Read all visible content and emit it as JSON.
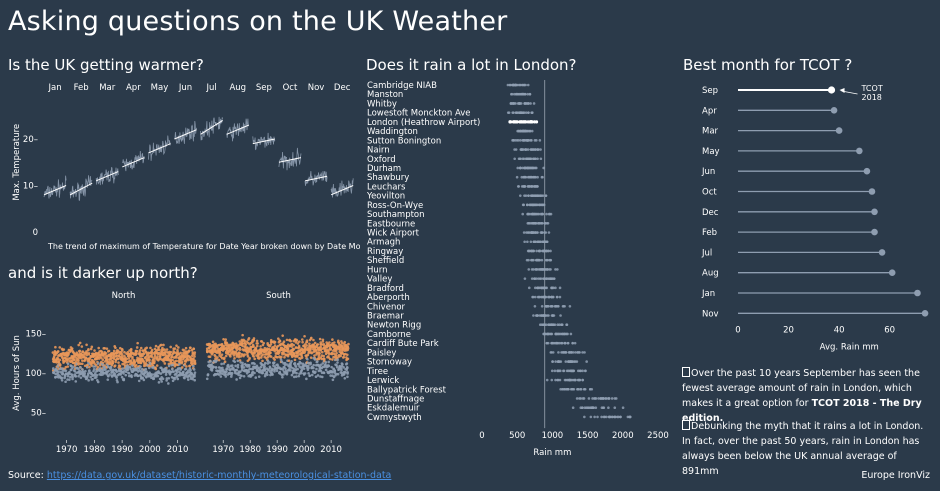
{
  "header": {
    "title": "Asking questions on the UK Weather"
  },
  "warmer": {
    "title": "Is the UK getting warmer?",
    "caption": "The trend of maximum of  Temperature for Date Year broken down by Date Month."
  },
  "darker": {
    "title": "and is it darker up north?",
    "panel_north": "North",
    "panel_south": "South"
  },
  "rain": {
    "title": "Does it rain a lot in London?"
  },
  "tcot": {
    "title": "Best month for TCOT ?",
    "annotation_line1": "TCOT",
    "annotation_line2": "2018"
  },
  "notes": {
    "note1_text": "Over the past 10 years September has seen the fewest average amount of rain in London, which makes it a great option for ",
    "note1_bold": "TCOT 2018 - The Dry edition.",
    "note2_text": "Debunking the myth that it rains a lot in London. In fact, over the past 50 years, rain in London has always been below the UK annual average of 891mm"
  },
  "footer": {
    "source_label": "Source: ",
    "source_link": "https://data.gov.uk/dataset/historic-monthly-meteorological-station-data",
    "credit": "Europe IronViz"
  },
  "colors": {
    "background": "#2b3a4a",
    "point_grey": "#8e9db0",
    "point_orange": "#e8975a",
    "highlight": "#ffffff",
    "refline": "#9aa6b2"
  },
  "chart_data": [
    {
      "id": "temperature",
      "type": "line",
      "title": "Is the UK getting warmer?",
      "ylabel": "Max. Temperature",
      "xlabel": "",
      "months": [
        "Jan",
        "Feb",
        "Mar",
        "Apr",
        "May",
        "Jun",
        "Jul",
        "Aug",
        "Sep",
        "Oct",
        "Nov",
        "Dec"
      ],
      "y_ticks": [
        0,
        10,
        20
      ],
      "ylim": [
        0,
        30
      ],
      "series": [
        {
          "month": "Jan",
          "trend": [
            8,
            10
          ]
        },
        {
          "month": "Feb",
          "trend": [
            8,
            10.5
          ]
        },
        {
          "month": "Mar",
          "trend": [
            11,
            13
          ]
        },
        {
          "month": "Apr",
          "trend": [
            14,
            16
          ]
        },
        {
          "month": "May",
          "trend": [
            17,
            19
          ]
        },
        {
          "month": "Jun",
          "trend": [
            20,
            22
          ]
        },
        {
          "month": "Jul",
          "trend": [
            21,
            24
          ]
        },
        {
          "month": "Aug",
          "trend": [
            21,
            23
          ]
        },
        {
          "month": "Sep",
          "trend": [
            19,
            20
          ]
        },
        {
          "month": "Oct",
          "trend": [
            15,
            16
          ]
        },
        {
          "month": "Nov",
          "trend": [
            11,
            12
          ]
        },
        {
          "month": "Dec",
          "trend": [
            8,
            10
          ]
        }
      ],
      "caption": "The trend of maximum of  Temperature for Date Year broken down by Date Month."
    },
    {
      "id": "sunshine",
      "type": "scatter",
      "title": "and is it darker up north?",
      "ylabel": "Avg. Hours of Sun",
      "panels": [
        "North",
        "South"
      ],
      "x_ticks": [
        1970,
        1980,
        1990,
        2000,
        2010
      ],
      "xlim": [
        1964,
        2017
      ],
      "y_ticks": [
        50,
        100,
        150
      ],
      "ylim": [
        20,
        175
      ],
      "orange_mean": {
        "North": 120,
        "South": 130
      },
      "grey_mean": {
        "North": 100,
        "South": 105
      }
    },
    {
      "id": "rainfall",
      "type": "scatter",
      "title": "Does it rain a lot in London?",
      "xlabel": "Rain mm",
      "x_ticks": [
        0,
        500,
        1000,
        1500,
        2000,
        2500
      ],
      "xlim": [
        0,
        2500
      ],
      "reference_line": 891,
      "highlight_station": "London (Heathrow Airport)",
      "stations": [
        {
          "name": "Cambridge NIAB",
          "center": 510,
          "spread": 240
        },
        {
          "name": "Manston",
          "center": 560,
          "spread": 250
        },
        {
          "name": "Whitby",
          "center": 560,
          "spread": 260
        },
        {
          "name": "Lowestoft Monckton Ave",
          "center": 580,
          "spread": 250
        },
        {
          "name": "London (Heathrow Airport)",
          "center": 600,
          "spread": 250
        },
        {
          "name": "Waddington",
          "center": 600,
          "spread": 250
        },
        {
          "name": "Sutton Bonington",
          "center": 610,
          "spread": 260
        },
        {
          "name": "Nairn",
          "center": 620,
          "spread": 260
        },
        {
          "name": "Oxford",
          "center": 650,
          "spread": 260
        },
        {
          "name": "Durham",
          "center": 650,
          "spread": 260
        },
        {
          "name": "Shawbury",
          "center": 670,
          "spread": 260
        },
        {
          "name": "Leuchars",
          "center": 670,
          "spread": 270
        },
        {
          "name": "Yeovilton",
          "center": 740,
          "spread": 270
        },
        {
          "name": "Ross-On-Wye",
          "center": 740,
          "spread": 280
        },
        {
          "name": "Southampton",
          "center": 790,
          "spread": 290
        },
        {
          "name": "Eastbourne",
          "center": 800,
          "spread": 290
        },
        {
          "name": "Wick Airport",
          "center": 790,
          "spread": 280
        },
        {
          "name": "Armagh",
          "center": 810,
          "spread": 280
        },
        {
          "name": "Ringway",
          "center": 830,
          "spread": 280
        },
        {
          "name": "Sheffield",
          "center": 830,
          "spread": 290
        },
        {
          "name": "Hurn",
          "center": 840,
          "spread": 310
        },
        {
          "name": "Valley",
          "center": 880,
          "spread": 300
        },
        {
          "name": "Bradford",
          "center": 880,
          "spread": 300
        },
        {
          "name": "Aberporth",
          "center": 920,
          "spread": 300
        },
        {
          "name": "Chivenor",
          "center": 980,
          "spread": 310
        },
        {
          "name": "Braemar",
          "center": 880,
          "spread": 320
        },
        {
          "name": "Newton Rigg",
          "center": 1000,
          "spread": 330
        },
        {
          "name": "Camborne",
          "center": 1060,
          "spread": 330
        },
        {
          "name": "Cardiff Bute Park",
          "center": 1080,
          "spread": 340
        },
        {
          "name": "Paisley",
          "center": 1230,
          "spread": 360
        },
        {
          "name": "Stornoway",
          "center": 1230,
          "spread": 370
        },
        {
          "name": "Tiree",
          "center": 1220,
          "spread": 370
        },
        {
          "name": "Lerwick",
          "center": 1210,
          "spread": 340
        },
        {
          "name": "Ballypatrick Forest",
          "center": 1330,
          "spread": 400
        },
        {
          "name": "Dunstaffnage",
          "center": 1680,
          "spread": 440
        },
        {
          "name": "Eskdalemuir",
          "center": 1650,
          "spread": 450
        },
        {
          "name": "Cwmystwyth",
          "center": 1830,
          "spread": 480
        }
      ]
    },
    {
      "id": "tcot",
      "type": "bar",
      "title": "Best month for TCOT ?",
      "xlabel": "Avg. Rain mm",
      "x_ticks": [
        0,
        20,
        40,
        60
      ],
      "xlim": [
        0,
        72
      ],
      "categories": [
        "Sep",
        "Apr",
        "Mar",
        "May",
        "Jun",
        "Oct",
        "Dec",
        "Feb",
        "Jul",
        "Aug",
        "Jan",
        "Nov"
      ],
      "values": [
        37,
        38,
        40,
        48,
        51,
        53,
        54,
        54,
        57,
        61,
        71,
        74
      ],
      "highlight": "Sep"
    }
  ]
}
